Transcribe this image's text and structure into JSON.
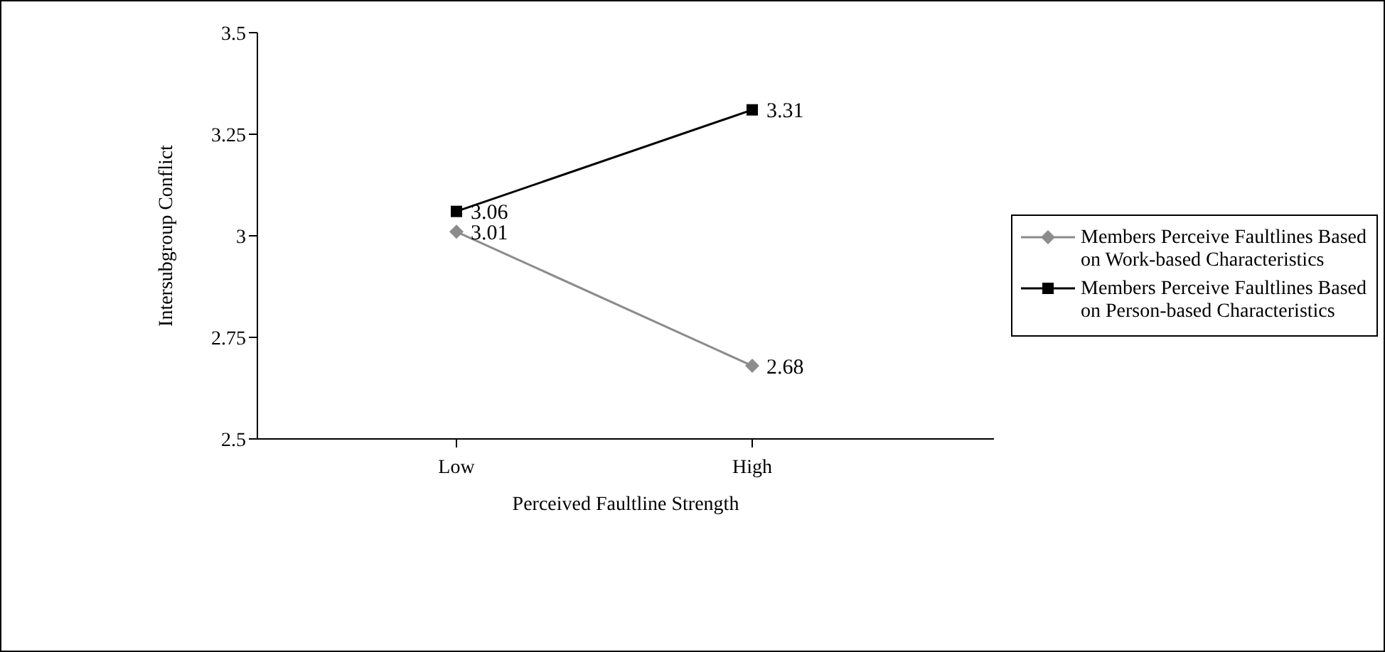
{
  "chart_data": {
    "type": "line",
    "xlabel": "Perceived Faultline Strength",
    "ylabel": "Intersubgroup Conflict",
    "categories": [
      "Low",
      "High"
    ],
    "series": [
      {
        "name": "Members Perceive Faultlines Based on Work-based Characteristics",
        "color": "#8c8c8c",
        "marker": "diamond",
        "values": [
          3.01,
          2.68
        ]
      },
      {
        "name": "Members Perceive Faultlines Based on Person-based Characteristics",
        "color": "#000000",
        "marker": "square",
        "values": [
          3.06,
          3.31
        ]
      }
    ],
    "ylim": [
      2.5,
      3.5
    ],
    "yticks": [
      2.5,
      2.75,
      3,
      3.25,
      3.5
    ],
    "grid": false,
    "legend": "right",
    "data_labels": true
  }
}
